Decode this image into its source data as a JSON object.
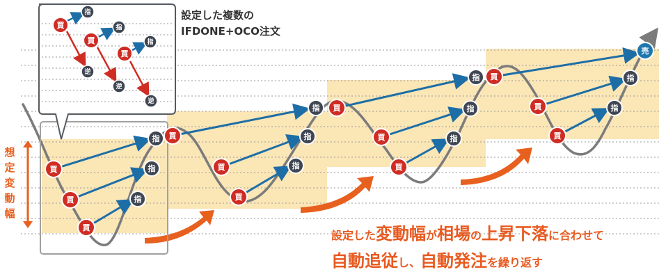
{
  "colors": {
    "buy": "#cf2c24",
    "limit": "#3f4652",
    "stop": "#3f4652",
    "sell": "#1d76ad",
    "arrow_blue": "#1d6ea6",
    "arrow_red": "#cf2c24",
    "band": "#fbe6b6",
    "price_line": "#7b7b7b",
    "range_arrow": "#e8601e",
    "highlight_text": "#e85a20"
  },
  "labels": {
    "buy": "買",
    "limit": "指",
    "stop": "逆",
    "sell": "売"
  },
  "callout_title": [
    "設定した複数の",
    "IFDONE+OCO注文"
  ],
  "range_label": "想定変動幅",
  "bottom_text": {
    "line1": [
      {
        "t": "設定した",
        "big": false
      },
      {
        "t": "変動幅",
        "big": true
      },
      {
        "t": "が",
        "big": false
      },
      {
        "t": "相場",
        "big": true
      },
      {
        "t": "の",
        "big": false
      },
      {
        "t": "上昇下落",
        "big": true
      },
      {
        "t": "に合わせて",
        "big": false
      }
    ],
    "line2": [
      {
        "t": "自動追従",
        "big": true
      },
      {
        "t": "し、",
        "big": false
      },
      {
        "t": "自動発注",
        "big": true
      },
      {
        "t": "を繰り返す",
        "big": false
      }
    ]
  }
}
